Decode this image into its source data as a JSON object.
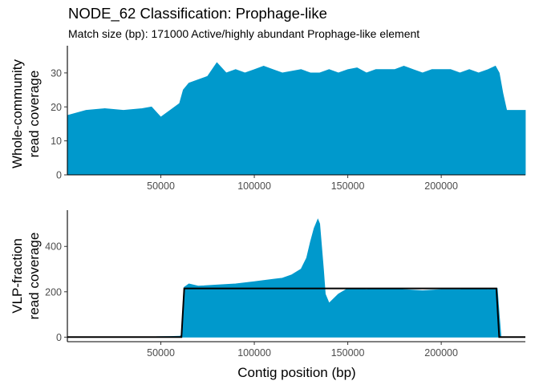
{
  "title": "NODE_62 Classification: Prophage-like",
  "subtitle": "Match size (bp): 171000 Active/highly abundant Prophage-like element",
  "colors": {
    "fill": "#0099cc",
    "line": "#000000",
    "axis": "#000000"
  },
  "chart_data": [
    {
      "type": "area",
      "ylabel_line1": "Whole-community",
      "ylabel_line2": "read coverage",
      "xlim": [
        0,
        245000
      ],
      "ylim": [
        0,
        38
      ],
      "x_ticks": [
        50000,
        100000,
        150000,
        200000
      ],
      "y_ticks": [
        0,
        10,
        20,
        30
      ],
      "x": [
        0,
        10000,
        20000,
        30000,
        40000,
        45000,
        50000,
        55000,
        60000,
        62000,
        65000,
        70000,
        75000,
        80000,
        85000,
        90000,
        95000,
        100000,
        105000,
        110000,
        115000,
        120000,
        125000,
        130000,
        135000,
        140000,
        145000,
        150000,
        155000,
        160000,
        165000,
        170000,
        175000,
        180000,
        185000,
        190000,
        195000,
        200000,
        205000,
        210000,
        215000,
        220000,
        225000,
        229000,
        231000,
        233000,
        235000,
        240000,
        245000
      ],
      "values": [
        17.5,
        19,
        19.5,
        19,
        19.5,
        20,
        17,
        19,
        21,
        25,
        27,
        28,
        29,
        33,
        30,
        31,
        30,
        31,
        32,
        31,
        30,
        30.5,
        31,
        30,
        30,
        31,
        30,
        31,
        31.5,
        30,
        31,
        31,
        31,
        32,
        31,
        30,
        31,
        31,
        31,
        30,
        31,
        30,
        31,
        32,
        30,
        24,
        19,
        19,
        19
      ]
    },
    {
      "type": "area",
      "ylabel_line1": "VLP-fraction",
      "ylabel_line2": "read coverage",
      "xlabel": "Contig position (bp)",
      "xlim": [
        0,
        245000
      ],
      "ylim": [
        -20,
        560
      ],
      "x_ticks": [
        50000,
        100000,
        150000,
        200000
      ],
      "y_ticks": [
        0,
        200,
        400
      ],
      "x": [
        0,
        45000,
        48000,
        55000,
        60000,
        61500,
        62500,
        65000,
        70000,
        80000,
        90000,
        100000,
        105000,
        110000,
        115000,
        120000,
        125000,
        128000,
        130000,
        132000,
        134000,
        135000,
        137000,
        138000,
        140000,
        145000,
        150000,
        160000,
        170000,
        180000,
        190000,
        200000,
        210000,
        220000,
        225000,
        229000,
        230000,
        231000,
        232000,
        245000
      ],
      "values": [
        0,
        0,
        2,
        3,
        4,
        10,
        220,
        235,
        225,
        230,
        235,
        245,
        250,
        255,
        260,
        275,
        300,
        350,
        420,
        480,
        520,
        500,
        300,
        190,
        150,
        190,
        215,
        210,
        215,
        210,
        205,
        210,
        210,
        215,
        210,
        215,
        215,
        100,
        0,
        0
      ],
      "fit_line": {
        "x": [
          0,
          61000,
          62500,
          229500,
          231000,
          245000
        ],
        "values": [
          0,
          0,
          215,
          215,
          0,
          0
        ]
      }
    }
  ]
}
